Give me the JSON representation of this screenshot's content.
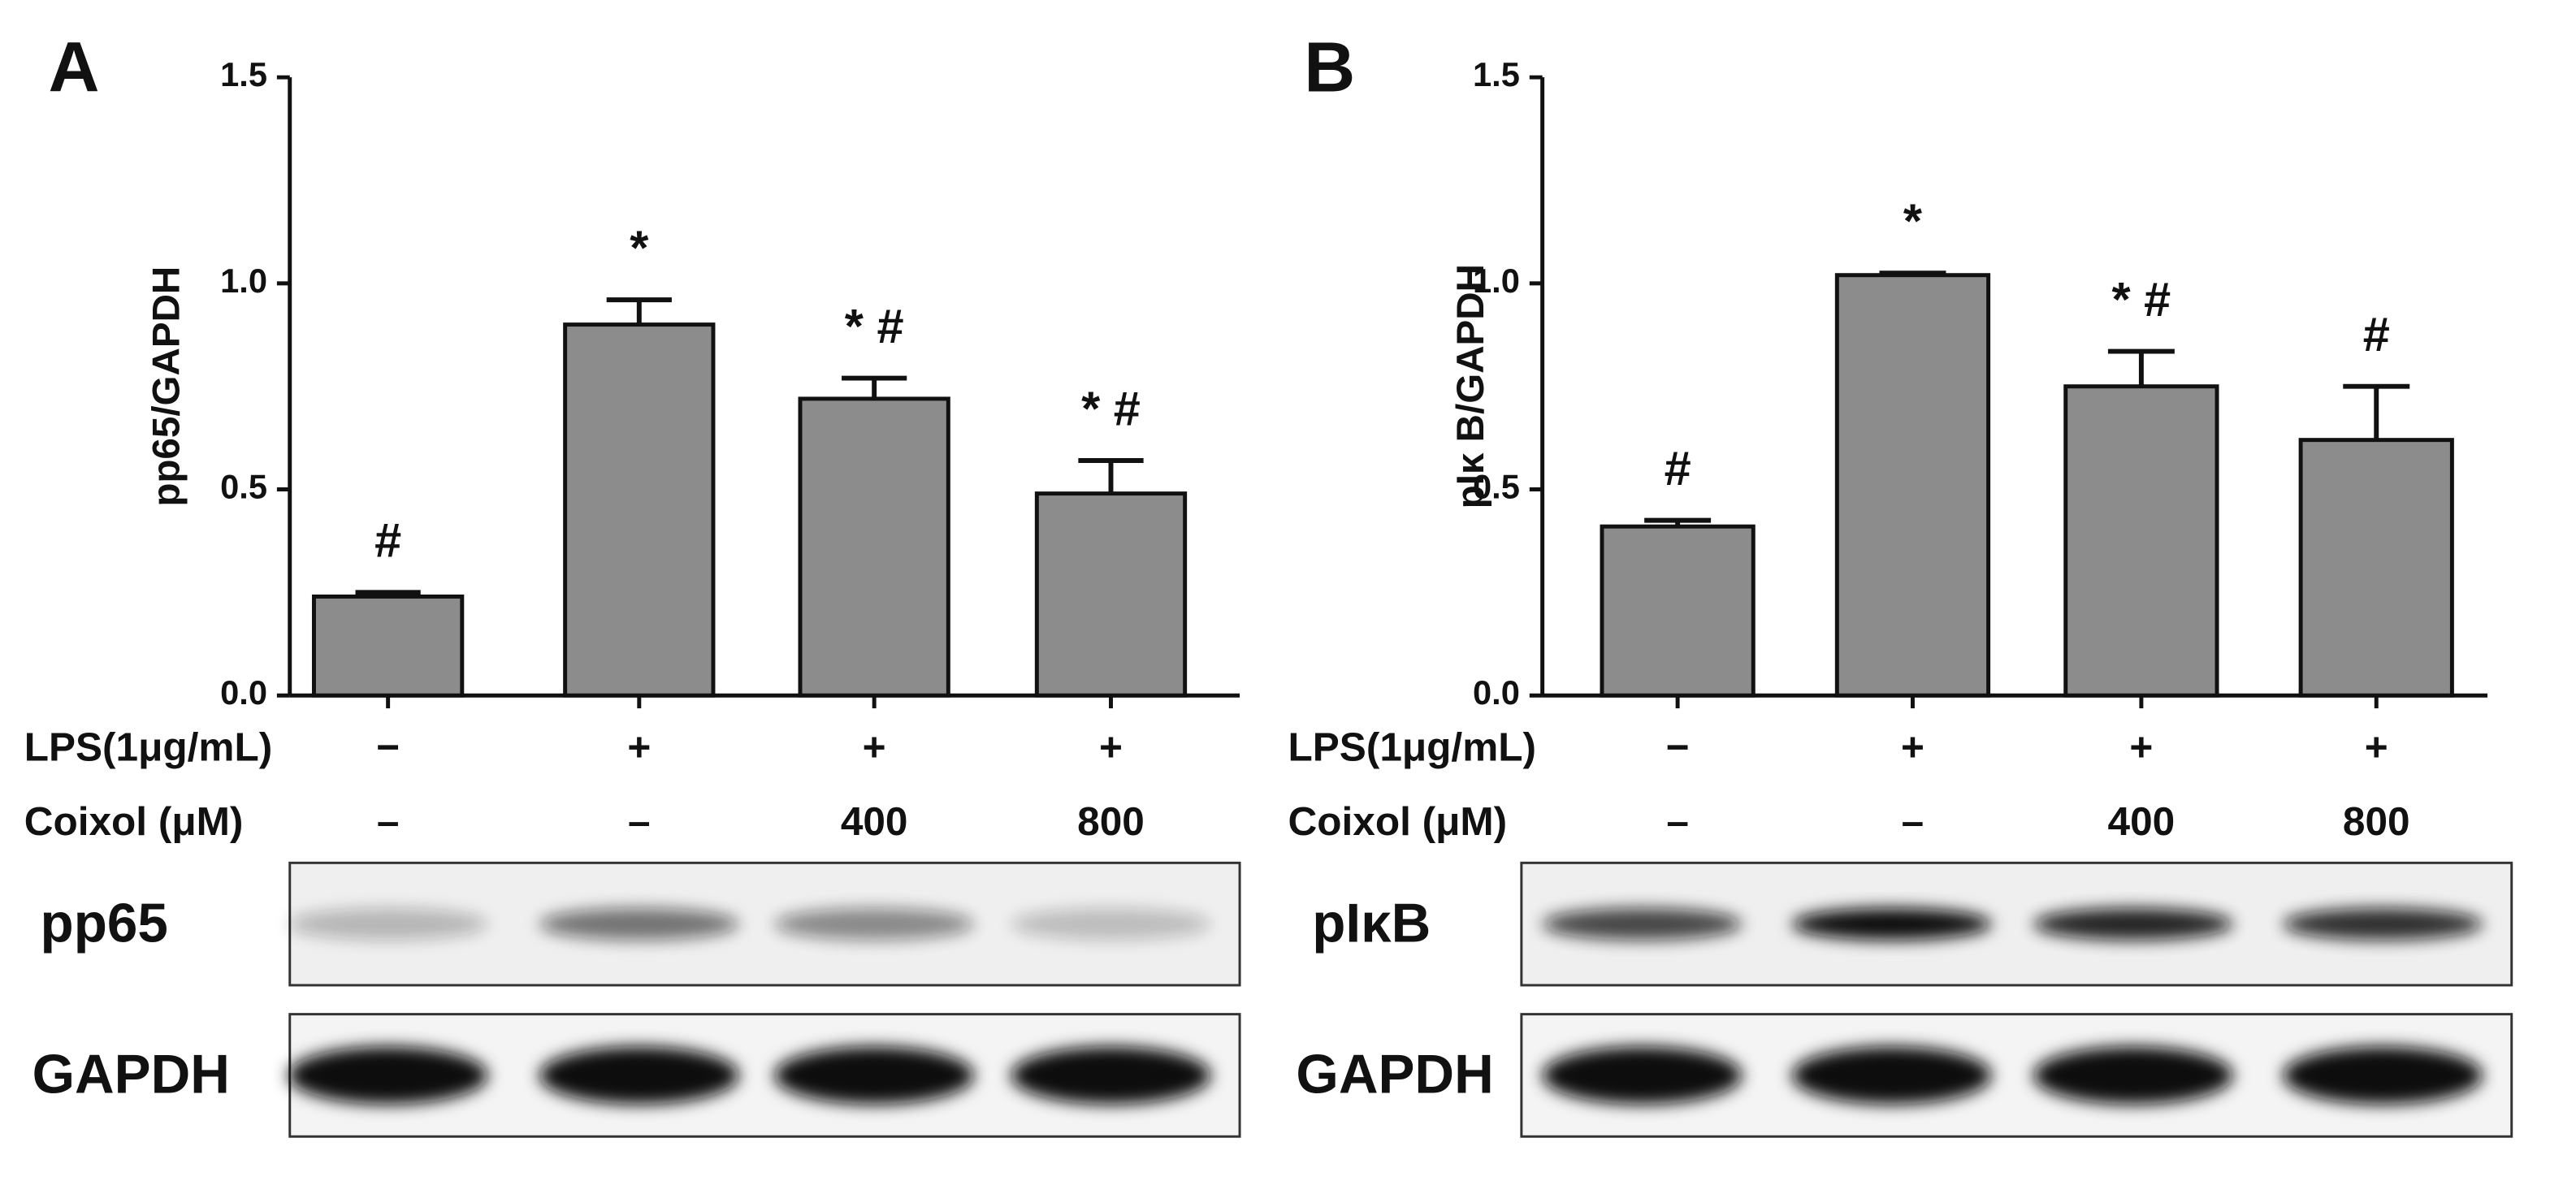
{
  "chart_data": [
    {
      "type": "bar",
      "panel_label": "A",
      "ylabel": "pp65/GAPDH",
      "values": [
        0.24,
        0.9,
        0.72,
        0.49
      ],
      "errors": [
        0.01,
        0.06,
        0.05,
        0.08
      ],
      "annotations": [
        "#",
        "*",
        "* #",
        "* #"
      ],
      "color": "#8c8c8c",
      "ylim": [
        0,
        1.5
      ],
      "yticks": [
        {
          "value": 0,
          "label": "0.0"
        },
        {
          "value": 0.5,
          "label": "0.5"
        },
        {
          "value": 1,
          "label": "1.0"
        },
        {
          "value": 1.5,
          "label": "1.5"
        }
      ],
      "conditions": [
        {
          "label": "LPS(1μg/mL)",
          "values": [
            "−",
            "+",
            "+",
            "+"
          ]
        },
        {
          "label": "Coixol (μM)",
          "values": [
            "–",
            "–",
            "400",
            "800"
          ]
        }
      ],
      "blot_labels": [
        "pp65",
        "GAPDH"
      ]
    },
    {
      "type": "bar",
      "panel_label": "B",
      "ylabel": "pIκ B/GAPDH",
      "values": [
        0.41,
        1.02,
        0.75,
        0.62
      ],
      "errors": [
        0.015,
        0.005,
        0.085,
        0.13
      ],
      "annotations": [
        "#",
        "*",
        "* #",
        "#"
      ],
      "color": "#8c8c8c",
      "ylim": [
        0,
        1.5
      ],
      "yticks": [
        {
          "value": 0,
          "label": "0.0"
        },
        {
          "value": 0.5,
          "label": "0.5"
        },
        {
          "value": 1,
          "label": "1.0"
        },
        {
          "value": 1.5,
          "label": "1.5"
        }
      ],
      "conditions": [
        {
          "label": "LPS(1μg/mL)",
          "values": [
            "−",
            "+",
            "+",
            "+"
          ]
        },
        {
          "label": "Coixol (μM)",
          "values": [
            "–",
            "–",
            "400",
            "800"
          ]
        }
      ],
      "blot_labels": [
        "pIκB",
        "GAPDH"
      ]
    }
  ]
}
